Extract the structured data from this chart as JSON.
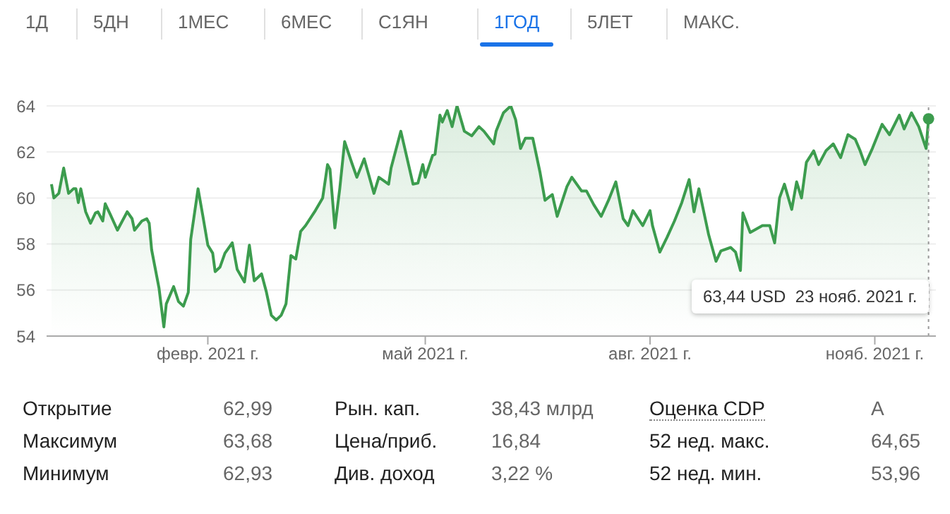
{
  "chart_data": {
    "type": "area",
    "color": "#3c9c4e",
    "x": [
      "2020-11-29",
      "2020-11-30",
      "2020-12-02",
      "2020-12-04",
      "2020-12-06",
      "2020-12-08",
      "2020-12-09",
      "2020-12-10",
      "2020-12-11",
      "2020-12-13",
      "2020-12-15",
      "2020-12-17",
      "2020-12-18",
      "2020-12-20",
      "2020-12-21",
      "2020-12-23",
      "2020-12-26",
      "2020-12-28",
      "2020-12-30",
      "2021-01-01",
      "2021-01-02",
      "2021-01-05",
      "2021-01-07",
      "2021-01-08",
      "2021-01-09",
      "2021-01-12",
      "2021-01-14",
      "2021-01-15",
      "2021-01-18",
      "2021-01-20",
      "2021-01-22",
      "2021-01-24",
      "2021-01-25",
      "2021-01-28",
      "2021-01-30",
      "2021-02-01",
      "2021-02-03",
      "2021-02-04",
      "2021-02-06",
      "2021-02-08",
      "2021-02-11",
      "2021-02-13",
      "2021-02-16",
      "2021-02-18",
      "2021-02-20",
      "2021-02-23",
      "2021-02-25",
      "2021-02-27",
      "2021-03-01",
      "2021-03-03",
      "2021-03-05",
      "2021-03-07",
      "2021-03-09",
      "2021-03-11",
      "2021-03-13",
      "2021-03-17",
      "2021-03-20",
      "2021-03-22",
      "2021-03-23",
      "2021-03-25",
      "2021-03-27",
      "2021-03-29",
      "2021-04-01",
      "2021-04-03",
      "2021-04-06",
      "2021-04-10",
      "2021-04-12",
      "2021-04-16",
      "2021-04-17",
      "2021-04-21",
      "2021-04-26",
      "2021-04-28",
      "2021-04-30",
      "2021-05-01",
      "2021-05-04",
      "2021-05-05",
      "2021-05-07",
      "2021-05-08",
      "2021-05-10",
      "2021-05-12",
      "2021-05-14",
      "2021-05-17",
      "2021-05-20",
      "2021-05-23",
      "2021-05-25",
      "2021-05-29",
      "2021-05-30",
      "2021-06-02",
      "2021-06-05",
      "2021-06-07",
      "2021-06-09",
      "2021-06-11",
      "2021-06-14",
      "2021-06-17",
      "2021-06-19",
      "2021-06-22",
      "2021-06-24",
      "2021-06-28",
      "2021-06-30",
      "2021-07-04",
      "2021-07-06",
      "2021-07-09",
      "2021-07-12",
      "2021-07-15",
      "2021-07-18",
      "2021-07-21",
      "2021-07-23",
      "2021-07-25",
      "2021-07-29",
      "2021-08-01",
      "2021-08-02",
      "2021-08-05",
      "2021-08-08",
      "2021-08-11",
      "2021-08-14",
      "2021-08-17",
      "2021-08-19",
      "2021-08-21",
      "2021-08-25",
      "2021-08-28",
      "2021-08-30",
      "2021-09-03",
      "2021-09-05",
      "2021-09-07",
      "2021-09-08",
      "2021-09-11",
      "2021-09-16",
      "2021-09-19",
      "2021-09-21",
      "2021-09-23",
      "2021-09-25",
      "2021-09-28",
      "2021-09-30",
      "2021-10-02",
      "2021-10-04",
      "2021-10-07",
      "2021-10-09",
      "2021-10-12",
      "2021-10-15",
      "2021-10-18",
      "2021-10-21",
      "2021-10-24",
      "2021-10-26",
      "2021-10-28",
      "2021-10-31",
      "2021-11-04",
      "2021-11-07",
      "2021-11-11",
      "2021-11-13",
      "2021-11-16",
      "2021-11-19",
      "2021-11-22",
      "2021-11-23"
    ],
    "values": [
      60.6,
      60.0,
      60.2,
      61.3,
      60.2,
      60.4,
      60.4,
      59.8,
      60.4,
      59.4,
      58.9,
      59.35,
      59.4,
      59.0,
      59.75,
      59.3,
      58.6,
      59.0,
      59.4,
      59.1,
      58.6,
      59.0,
      59.1,
      58.9,
      57.75,
      56.1,
      54.4,
      55.4,
      56.15,
      55.5,
      55.3,
      55.9,
      58.2,
      60.4,
      59.2,
      57.95,
      57.6,
      56.8,
      57.0,
      57.6,
      58.05,
      56.9,
      56.35,
      57.95,
      56.4,
      56.7,
      55.9,
      54.9,
      54.7,
      54.9,
      55.4,
      57.5,
      57.35,
      58.55,
      58.8,
      59.45,
      60.0,
      61.45,
      61.25,
      58.7,
      60.4,
      62.45,
      61.5,
      60.9,
      61.7,
      60.2,
      60.9,
      60.6,
      61.3,
      62.9,
      60.6,
      60.65,
      61.45,
      60.9,
      61.85,
      61.9,
      63.6,
      63.3,
      63.8,
      63.1,
      64.0,
      62.9,
      62.7,
      63.1,
      62.9,
      62.35,
      62.9,
      63.7,
      64.0,
      63.4,
      62.15,
      62.6,
      62.6,
      61.1,
      59.9,
      60.15,
      59.2,
      60.5,
      60.9,
      60.3,
      60.3,
      59.7,
      59.2,
      59.9,
      60.7,
      59.1,
      58.8,
      59.45,
      58.8,
      59.45,
      58.8,
      57.65,
      58.3,
      59.0,
      59.8,
      60.8,
      59.4,
      60.4,
      58.4,
      57.25,
      57.7,
      57.85,
      57.65,
      56.85,
      59.35,
      58.5,
      58.8,
      58.8,
      58.05,
      60.0,
      60.6,
      59.5,
      60.7,
      60.0,
      61.55,
      62.05,
      61.45,
      62.05,
      62.35,
      61.75,
      62.75,
      62.55,
      62.05,
      61.45,
      62.15,
      63.2,
      62.75,
      63.6,
      63.0,
      63.7,
      63.1,
      62.15,
      63.44
    ],
    "xlim": [
      "2020-11-27",
      "2021-11-26"
    ],
    "xticks": [
      {
        "value": "2021-02-01",
        "label": "февр. 2021 г."
      },
      {
        "value": "2021-05-01",
        "label": "май 2021 г."
      },
      {
        "value": "2021-08-01",
        "label": "авг. 2021 г."
      },
      {
        "value": "2021-11-01",
        "label": "нояб. 2021 г."
      }
    ],
    "ylim": [
      54,
      64
    ],
    "yticks": [
      54,
      56,
      58,
      60,
      62,
      64
    ],
    "grid": "y",
    "ref_lines": [
      {
        "axis": "x",
        "value": "2021-11-23",
        "line_style": "dotted",
        "color": "#999999"
      }
    ],
    "annotations": [
      "1Д",
      "5ДН",
      "1МЕС",
      "6МЕС",
      "С1ЯН",
      "1ГОД",
      "5ЛЕТ",
      "МАКС.",
      "Открытие",
      "62,99",
      "Рын. кап.",
      "38,43 млрд",
      "Оценка CDP",
      "A",
      "Максимум",
      "63,68",
      "Цена/приб.",
      "16,84",
      "52 нед. макс.",
      "64,65",
      "Минимум",
      "62,93",
      "Див. доход",
      "3,22 %",
      "52 нед. мин.",
      "53,96",
      "63,44 USD  23 нояб. 2021 г."
    ]
  }
}
